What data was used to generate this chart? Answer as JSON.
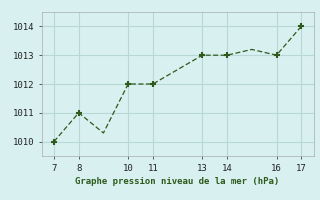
{
  "x": [
    7,
    8,
    9,
    10,
    11,
    13,
    14,
    15,
    16,
    17
  ],
  "y": [
    1010.0,
    1011.0,
    1010.3,
    1012.0,
    1012.0,
    1013.0,
    1013.0,
    1013.2,
    1013.0,
    1014.0
  ],
  "line_color": "#2d5a1b",
  "marker_x": [
    7,
    8,
    10,
    11,
    13,
    14,
    16,
    17
  ],
  "marker_y": [
    1010.0,
    1011.0,
    1012.0,
    1012.0,
    1013.0,
    1013.0,
    1013.0,
    1014.0
  ],
  "bg_color": "#d8f0f0",
  "grid_color": "#b8d8d8",
  "xlabel": "Graphe pression niveau de la mer (hPa)",
  "xlim": [
    6.5,
    17.5
  ],
  "ylim": [
    1009.5,
    1014.5
  ],
  "xticks": [
    7,
    8,
    10,
    11,
    13,
    14,
    16,
    17
  ],
  "yticks": [
    1010,
    1011,
    1012,
    1013,
    1014
  ]
}
